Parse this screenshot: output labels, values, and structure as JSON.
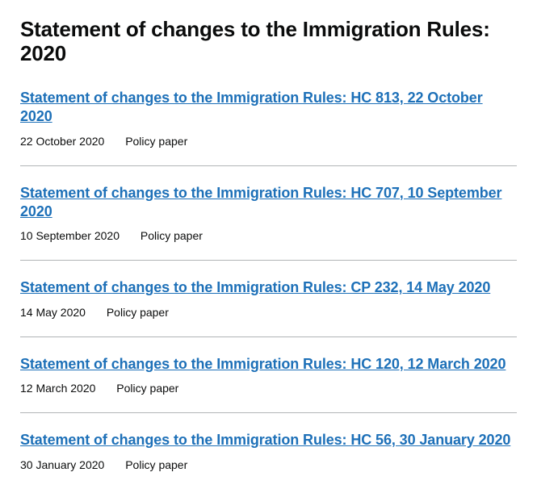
{
  "title": "Statement of changes to the Immigration Rules: 2020",
  "colors": {
    "link": "#1d70b8",
    "text": "#0b0c0c",
    "divider": "#b1b4b6",
    "background": "#ffffff"
  },
  "documents": [
    {
      "title": "Statement of changes to the Immigration Rules: HC 813, 22 October 2020",
      "date": "22 October 2020",
      "type": "Policy paper"
    },
    {
      "title": "Statement of changes to the Immigration Rules: HC 707, 10 September 2020",
      "date": "10 September 2020",
      "type": "Policy paper"
    },
    {
      "title": "Statement of changes to the Immigration Rules: CP 232, 14 May 2020",
      "date": "14 May 2020",
      "type": "Policy paper"
    },
    {
      "title": "Statement of changes to the Immigration Rules: HC 120, 12 March 2020",
      "date": "12 March 2020",
      "type": "Policy paper"
    },
    {
      "title": "Statement of changes to the Immigration Rules: HC 56, 30 January 2020",
      "date": "30 January 2020",
      "type": "Policy paper"
    }
  ]
}
